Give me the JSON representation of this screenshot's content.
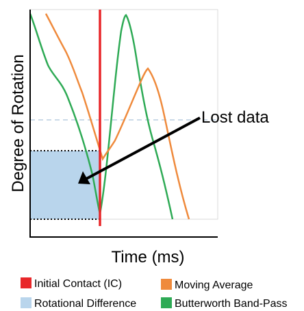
{
  "axes": {
    "ylabel": "Degree of Rotation",
    "xlabel": "Time (ms)"
  },
  "annotation": {
    "text": "Lost data"
  },
  "legend": [
    {
      "id": "ic",
      "label": "Initial Contact (IC)",
      "color": "#e8272a"
    },
    {
      "id": "moving-average",
      "label": "Moving Average",
      "color": "#ef8a3c"
    },
    {
      "id": "rotational-difference",
      "label": "Rotational Difference",
      "color": "#b9d5ec"
    },
    {
      "id": "butterworth",
      "label": "Butterworth Band-Pass",
      "color": "#2eaa55"
    }
  ],
  "colors": {
    "initial_contact": "#e8272a",
    "moving_average": "#ef8a3c",
    "butterworth": "#2eaa55",
    "rotational_difference_fill": "#b9d5ec",
    "reference_dashed_line": "#b8cde0",
    "arrow": "#000000",
    "axes": "#000000"
  }
}
